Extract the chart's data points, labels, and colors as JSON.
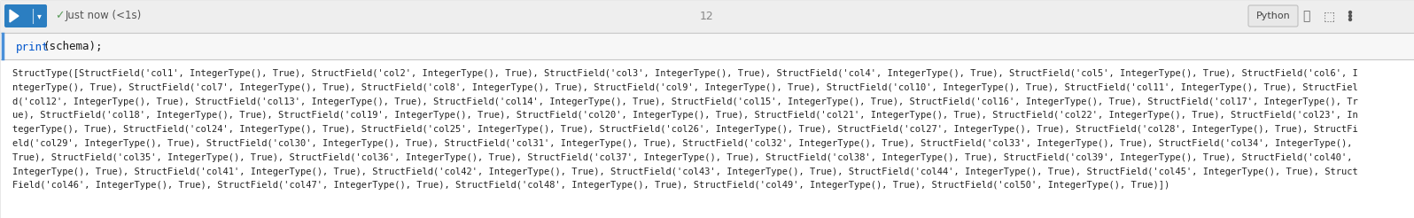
{
  "bg_color": "#f0f0f0",
  "toolbar_bg": "#eeeeee",
  "cell_bg": "#ffffff",
  "border_color": "#c8c8c8",
  "play_btn_color": "#2b7ec1",
  "cell_number": "12",
  "status_text": "Just now (<1s)",
  "status_color": "#5a9a5a",
  "lang_label": "Python",
  "code_color": "#1a1a1a",
  "print_color": "#0055cc",
  "schema_color": "#cc6600",
  "output_color": "#222222",
  "output_bg": "#ffffff",
  "code_area_bg": "#f7f7f7",
  "output_lines": [
    "StructType([StructField('col1', IntegerType(), True), StructField('col2', IntegerType(), True), StructField('col3', IntegerType(), True), StructField('col4', IntegerType(), True), StructField('col5', IntegerType(), True), StructField('col6', I",
    "ntegerType(), True), StructField('col7', IntegerType(), True), StructField('col8', IntegerType(), True), StructField('col9', IntegerType(), True), StructField('col10', IntegerType(), True), StructField('col11', IntegerType(), True), StructFiel",
    "d('col12', IntegerType(), True), StructField('col13', IntegerType(), True), StructField('col14', IntegerType(), True), StructField('col15', IntegerType(), True), StructField('col16', IntegerType(), True), StructField('col17', IntegerType(), Tr",
    "ue), StructField('col18', IntegerType(), True), StructField('col19', IntegerType(), True), StructField('col20', IntegerType(), True), StructField('col21', IntegerType(), True), StructField('col22', IntegerType(), True), StructField('col23', In",
    "tegerType(), True), StructField('col24', IntegerType(), True), StructField('col25', IntegerType(), True), StructField('col26', IntegerType(), True), StructField('col27', IntegerType(), True), StructField('col28', IntegerType(), True), StructFi",
    "eld('col29', IntegerType(), True), StructField('col30', IntegerType(), True), StructField('col31', IntegerType(), True), StructField('col32', IntegerType(), True), StructField('col33', IntegerType(), True), StructField('col34', IntegerType(),",
    "True), StructField('col35', IntegerType(), True), StructField('col36', IntegerType(), True), StructField('col37', IntegerType(), True), StructField('col38', IntegerType(), True), StructField('col39', IntegerType(), True), StructField('col40',",
    "IntegerType(), True), StructField('col41', IntegerType(), True), StructField('col42', IntegerType(), True), StructField('col43', IntegerType(), True), StructField('col44', IntegerType(), True), StructField('col45', IntegerType(), True), Struct",
    "Field('col46', IntegerType(), True), StructField('col47', IntegerType(), True), StructField('col48', IntegerType(), True), StructField('col49', IntegerType(), True), StructField('col50', IntegerType(), True)])"
  ],
  "figwidth": 15.96,
  "figheight": 2.46,
  "dpi": 100
}
